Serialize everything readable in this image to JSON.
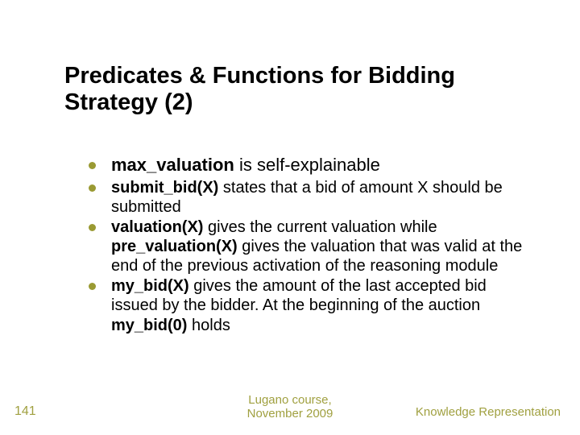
{
  "slide": {
    "title": "Predicates & Functions for Bidding Strategy (2)",
    "bullets": [
      {
        "bold": "max_valuation",
        "rest": " is self-explainable",
        "cls": "lead"
      },
      {
        "bold": "submit_bid(X)",
        "rest": " states that a bid of amount X should be submitted",
        "cls": "sub"
      },
      {
        "bold1": "valuation(X)",
        "mid": " gives the current valuation while ",
        "bold2": "pre_valuation(X)",
        "rest": " gives the valuation that was valid at the end of the previous activation of the reasoning module",
        "cls": "sub"
      },
      {
        "bold1": "my_bid(X)",
        "mid": " gives the amount of the last accepted bid issued by the bidder. At the beginning of the auction ",
        "bold2": "my_bid(0)",
        "rest": " holds",
        "cls": "sub"
      }
    ],
    "footer": {
      "page": "141",
      "center_line1": "Lugano course,",
      "center_line2": "November 2009",
      "right": "Knowledge Representation"
    },
    "colors": {
      "bullet": "#9a9a33",
      "footer_text": "#a0a040",
      "body_text": "#000000",
      "background": "#ffffff"
    },
    "fontsize": {
      "title": 29,
      "lead_bullet": 22,
      "sub_bullet": 20,
      "footer": 15
    }
  }
}
